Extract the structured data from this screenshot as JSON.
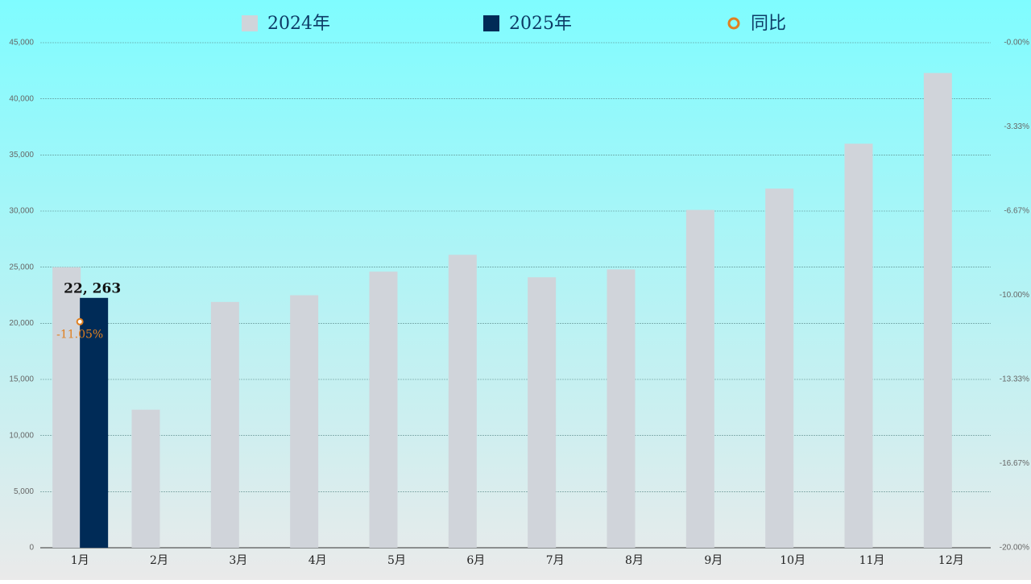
{
  "chart_data": {
    "type": "bar",
    "categories": [
      "1月",
      "2月",
      "3月",
      "4月",
      "5月",
      "6月",
      "7月",
      "8月",
      "9月",
      "10月",
      "11月",
      "12月"
    ],
    "series": [
      {
        "name": "2024年",
        "color": "#d0d4da",
        "values": [
          25000,
          12300,
          21900,
          22500,
          24600,
          26100,
          24100,
          24800,
          30100,
          32000,
          36000,
          42300
        ]
      },
      {
        "name": "2025年",
        "color": "#002b57",
        "values": [
          22263,
          null,
          null,
          null,
          null,
          null,
          null,
          null,
          null,
          null,
          null,
          null
        ],
        "value_labels": [
          "22, 263",
          null,
          null,
          null,
          null,
          null,
          null,
          null,
          null,
          null,
          null,
          null
        ]
      },
      {
        "name": "同比",
        "type": "line",
        "axis": "y2",
        "color": "#e08020",
        "values": [
          -11.05,
          null,
          null,
          null,
          null,
          null,
          null,
          null,
          null,
          null,
          null,
          null
        ],
        "value_labels": [
          "-11.05%",
          null,
          null,
          null,
          null,
          null,
          null,
          null,
          null,
          null,
          null,
          null
        ]
      }
    ],
    "ylim": [
      0,
      45000
    ],
    "yticks": [
      0,
      {
        "value": 5000,
        "label": "5,000"
      },
      {
        "value": 10000,
        "label": "10,000"
      },
      {
        "value": 15000,
        "label": "15,000"
      },
      {
        "value": 20000,
        "label": "20,000"
      },
      {
        "value": 25000,
        "label": "25,000"
      },
      {
        "value": 30000,
        "label": "30,000"
      },
      {
        "value": 35000,
        "label": "35,000"
      },
      {
        "value": 40000,
        "label": "40,000"
      },
      {
        "value": 45000,
        "label": "45,000"
      }
    ],
    "y2lim": [
      -20,
      0
    ],
    "y2ticks": [
      {
        "value": -20,
        "label": "-20.00%"
      },
      {
        "value": -16.67,
        "label": "-16.67%"
      },
      {
        "value": -13.33,
        "label": "-13.33%"
      },
      {
        "value": -10,
        "label": "-10.00%"
      },
      {
        "value": -6.67,
        "label": "-6.67%"
      },
      {
        "value": -3.33,
        "label": "-3.33%"
      },
      {
        "value": 0,
        "label": "-0.00%"
      }
    ],
    "grid": true
  }
}
